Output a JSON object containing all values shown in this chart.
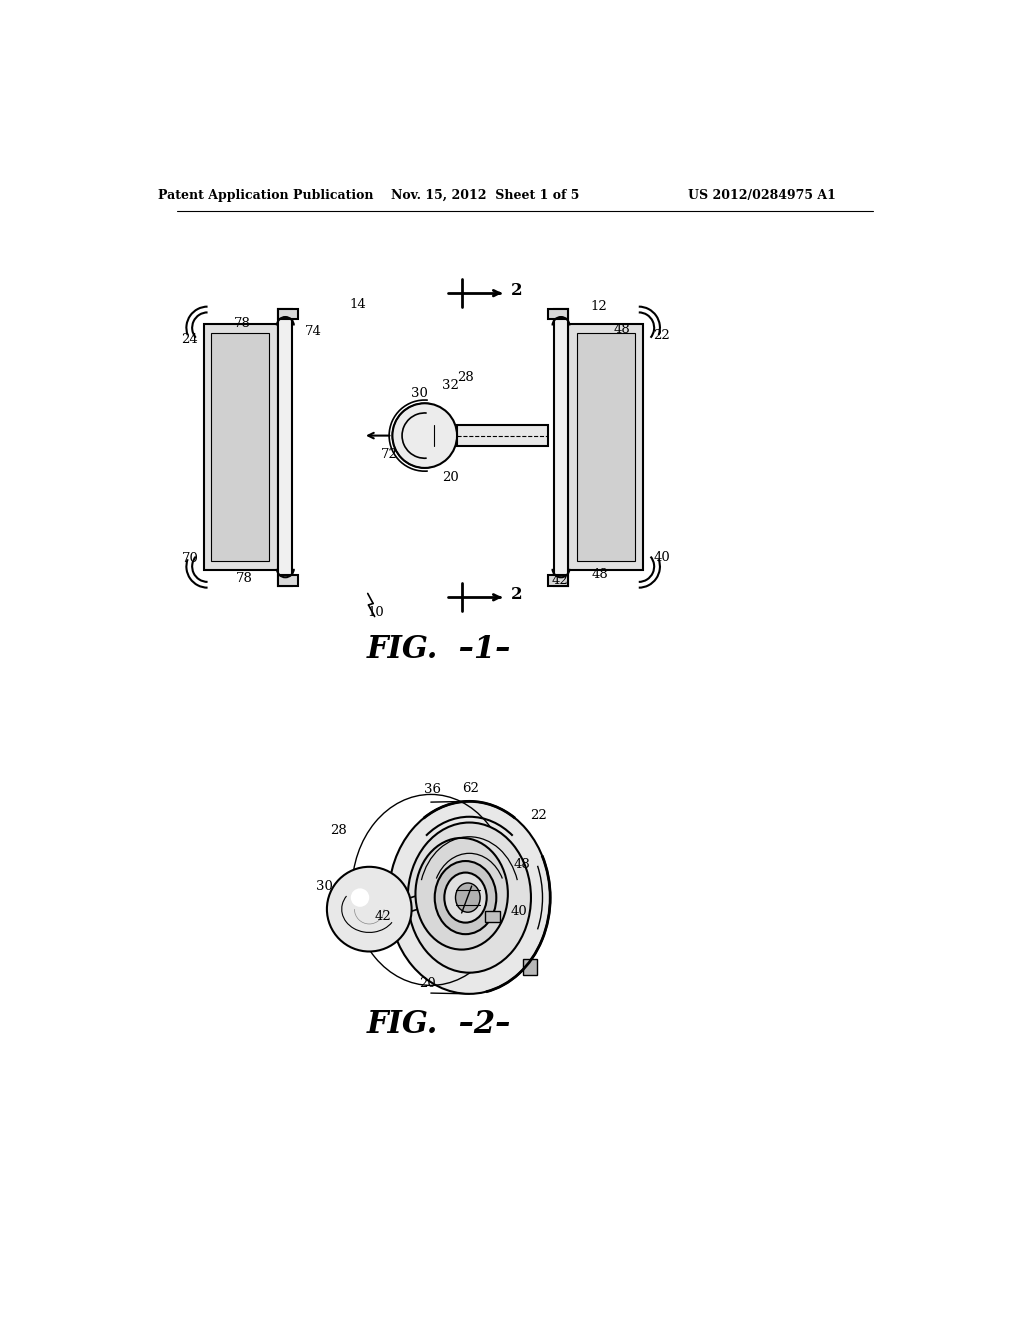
{
  "background_color": "#ffffff",
  "header_left": "Patent Application Publication",
  "header_center": "Nov. 15, 2012  Sheet 1 of 5",
  "header_right": "US 2012/0284975 A1",
  "fig1_label": "FIG.  –1–",
  "fig2_label": "FIG.  –2–",
  "text_color": "#000000",
  "line_color": "#000000"
}
